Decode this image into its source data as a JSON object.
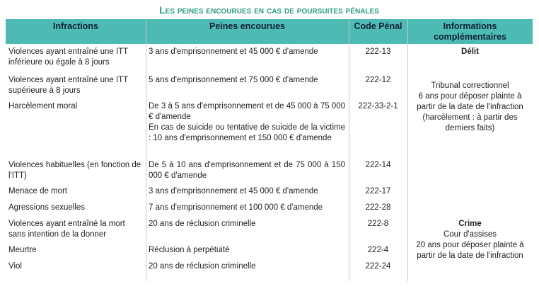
{
  "title": "Les peines encourues en cas de poursuites pénales",
  "table": {
    "header": [
      "Infractions",
      "Peines encourues",
      "Code Pénal",
      "Informations complémentaires"
    ],
    "rows": [
      {
        "infraction": "Violences ayant entraîné une ITT inférieure ou égale à 8 jours",
        "peines": [
          "3 ans d'emprisonnement et 45 000 € d'amende"
        ],
        "code": "222-13"
      },
      {
        "infraction": "Violences ayant entraîné une ITT supérieure à 8 jours",
        "peines": [
          "5 ans d'emprisonnement et 75 000 € d'amende"
        ],
        "code": "222-12"
      },
      {
        "infraction": "Harcèlement moral",
        "peines": [
          "De 3 à 5 ans d'emprisonnement et de 45 000 à 75 000 € d'amende",
          "En cas de suicide ou tentative de suicide de la victime : 10 ans d'emprisonnement et 150 000 € d'amende"
        ],
        "code": "222-33-2-1"
      },
      {
        "infraction": "Violences habituelles (en fonction de l'ITT)",
        "peines": [
          "De 5 à 10 ans d'emprisonnement et de 75 000 à 150 000 € d'amende"
        ],
        "code": "222-14"
      },
      {
        "infraction": "Menace de mort",
        "peines": [
          "3 ans d'emprisonnement et 45 000 € d'amende"
        ],
        "code": "222-17"
      },
      {
        "infraction": "Agressions sexuelles",
        "peines": [
          "7 ans d'emprisonnement et 100 000 € d'amende"
        ],
        "code": "222-28"
      },
      {
        "infraction": "Violences ayant entraîné la mort sans intention de la donner",
        "peines": [
          "20 ans de réclusion criminelle"
        ],
        "code": "222-8"
      },
      {
        "infraction": "Meurtre",
        "peines": [
          "Réclusion à perpétuité"
        ],
        "code": "222-4"
      },
      {
        "infraction": "Viol",
        "peines": [
          "20 ans de réclusion criminelle"
        ],
        "code": "222-24"
      }
    ],
    "info": [
      {
        "title": "Délit",
        "lines": []
      },
      {
        "lines": [
          "Tribunal correctionnel",
          "6 ans pour déposer plainte à partir de la date de l'infraction (harcèlement : à partir des derniers faits)"
        ]
      },
      {
        "title": "Crime",
        "lines": [
          "Cour d'assises",
          "20 ans pour déposer plainte à partir de la date de l'infraction"
        ]
      }
    ]
  }
}
